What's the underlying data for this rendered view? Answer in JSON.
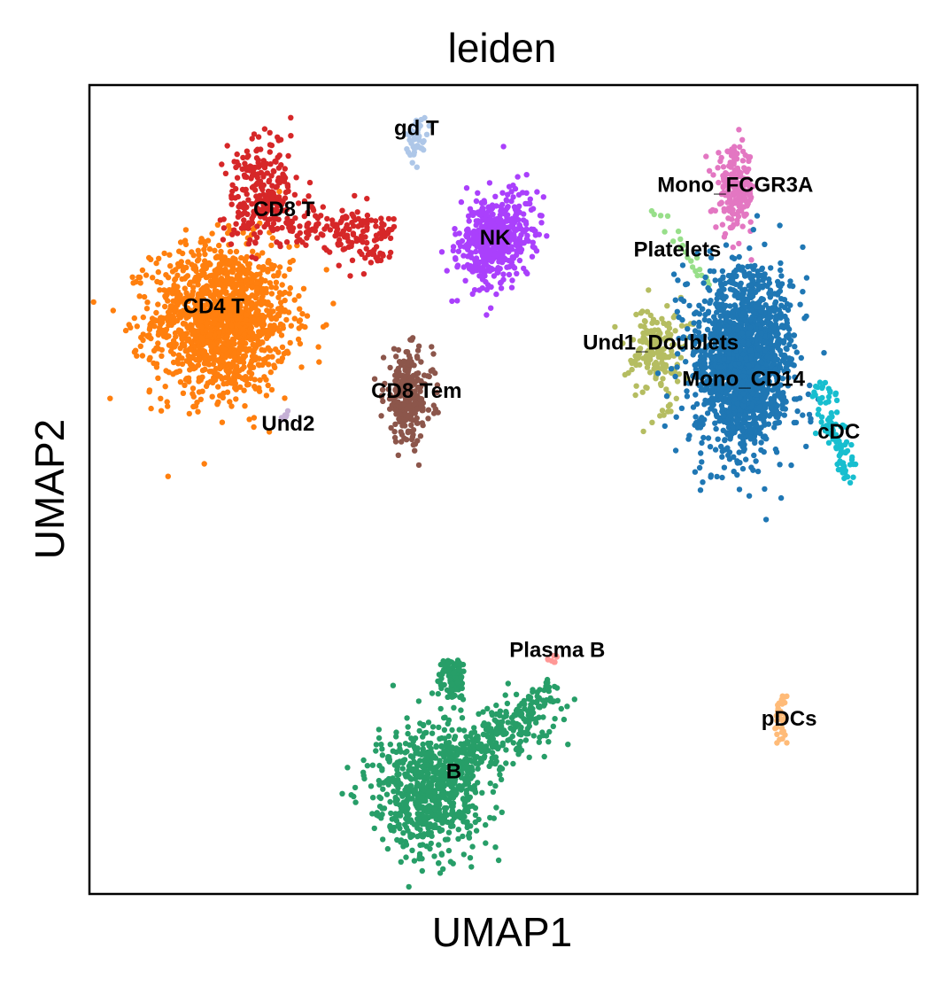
{
  "chart_data": {
    "type": "scatter",
    "title": "leiden",
    "xlabel": "UMAP1",
    "ylabel": "UMAP2",
    "xlim": [
      0,
      100
    ],
    "ylim": [
      0,
      100
    ],
    "grid": false,
    "legend": "on data",
    "ticks": "none",
    "clusters": [
      {
        "name": "CD4 T",
        "color": "#ff7f0e",
        "label_xy": [
          15,
          72.5
        ],
        "centroid": [
          16,
          71
        ],
        "spread": [
          10,
          11
        ],
        "n": 1400,
        "shape": "blob"
      },
      {
        "name": "CD8 T",
        "color": "#d62728",
        "label_xy": [
          23.5,
          84.5
        ],
        "centroid": [
          26,
          85
        ],
        "spread": [
          12,
          6
        ],
        "n": 420,
        "shape": "cd8t"
      },
      {
        "name": "gd T",
        "color": "#aec7e8",
        "label_xy": [
          39.5,
          94.5
        ],
        "centroid": [
          39.5,
          93.5
        ],
        "spread": [
          1.5,
          3
        ],
        "n": 45,
        "shape": "blob"
      },
      {
        "name": "NK",
        "color": "#aa40fc",
        "label_xy": [
          49,
          81
        ],
        "centroid": [
          49,
          81
        ],
        "spread": [
          5.5,
          7
        ],
        "n": 550,
        "shape": "tiltblob"
      },
      {
        "name": "CD8 Tem",
        "color": "#8c564b",
        "label_xy": [
          39.5,
          62
        ],
        "centroid": [
          38.5,
          61.5
        ],
        "spread": [
          3.5,
          6.5
        ],
        "n": 260,
        "shape": "blob"
      },
      {
        "name": "Und2",
        "color": "#c5b0d5",
        "label_xy": [
          24,
          58
        ],
        "centroid": [
          23.5,
          59
        ],
        "spread": [
          0.6,
          0.6
        ],
        "n": 6,
        "shape": "blob"
      },
      {
        "name": "Mono_FCGR3A",
        "color": "#e377c2",
        "label_xy": [
          78,
          87.5
        ],
        "centroid": [
          78,
          87
        ],
        "spread": [
          2.8,
          6
        ],
        "n": 200,
        "shape": "blob"
      },
      {
        "name": "Platelets",
        "color": "#98df8a",
        "label_xy": [
          71,
          79.5
        ],
        "centroid": [
          71,
          80
        ],
        "spread": [
          3.5,
          3
        ],
        "n": 22,
        "shape": "streak"
      },
      {
        "name": "Und1_Doublets",
        "color": "#b5bd61",
        "label_xy": [
          69,
          68
        ],
        "centroid": [
          68.5,
          67
        ],
        "spread": [
          3.5,
          7
        ],
        "n": 180,
        "shape": "blob"
      },
      {
        "name": "Mono_CD14",
        "color": "#1f77b4",
        "label_xy": [
          79,
          63.5
        ],
        "centroid": [
          79,
          66
        ],
        "spread": [
          7,
          13
        ],
        "n": 1600,
        "shape": "blob"
      },
      {
        "name": "cDC",
        "color": "#17becf",
        "label_xy": [
          90.5,
          57
        ],
        "centroid": [
          90,
          57.5
        ],
        "spread": [
          3.5,
          4
        ],
        "n": 90,
        "shape": "streak2"
      },
      {
        "name": "B",
        "color": "#279e68",
        "label_xy": [
          44,
          15
        ],
        "centroid": [
          44.5,
          17
        ],
        "spread": [
          10,
          11
        ],
        "n": 1100,
        "shape": "bcell"
      },
      {
        "name": "Plasma B",
        "color": "#ff9896",
        "label_xy": [
          56.5,
          30
        ],
        "centroid": [
          56,
          29
        ],
        "spread": [
          0.6,
          0.8
        ],
        "n": 8,
        "shape": "blob"
      },
      {
        "name": "pDCs",
        "color": "#ffbb78",
        "label_xy": [
          84.5,
          21.5
        ],
        "centroid": [
          83.5,
          21.5
        ],
        "spread": [
          0.8,
          3.2
        ],
        "n": 30,
        "shape": "streak3"
      }
    ]
  }
}
